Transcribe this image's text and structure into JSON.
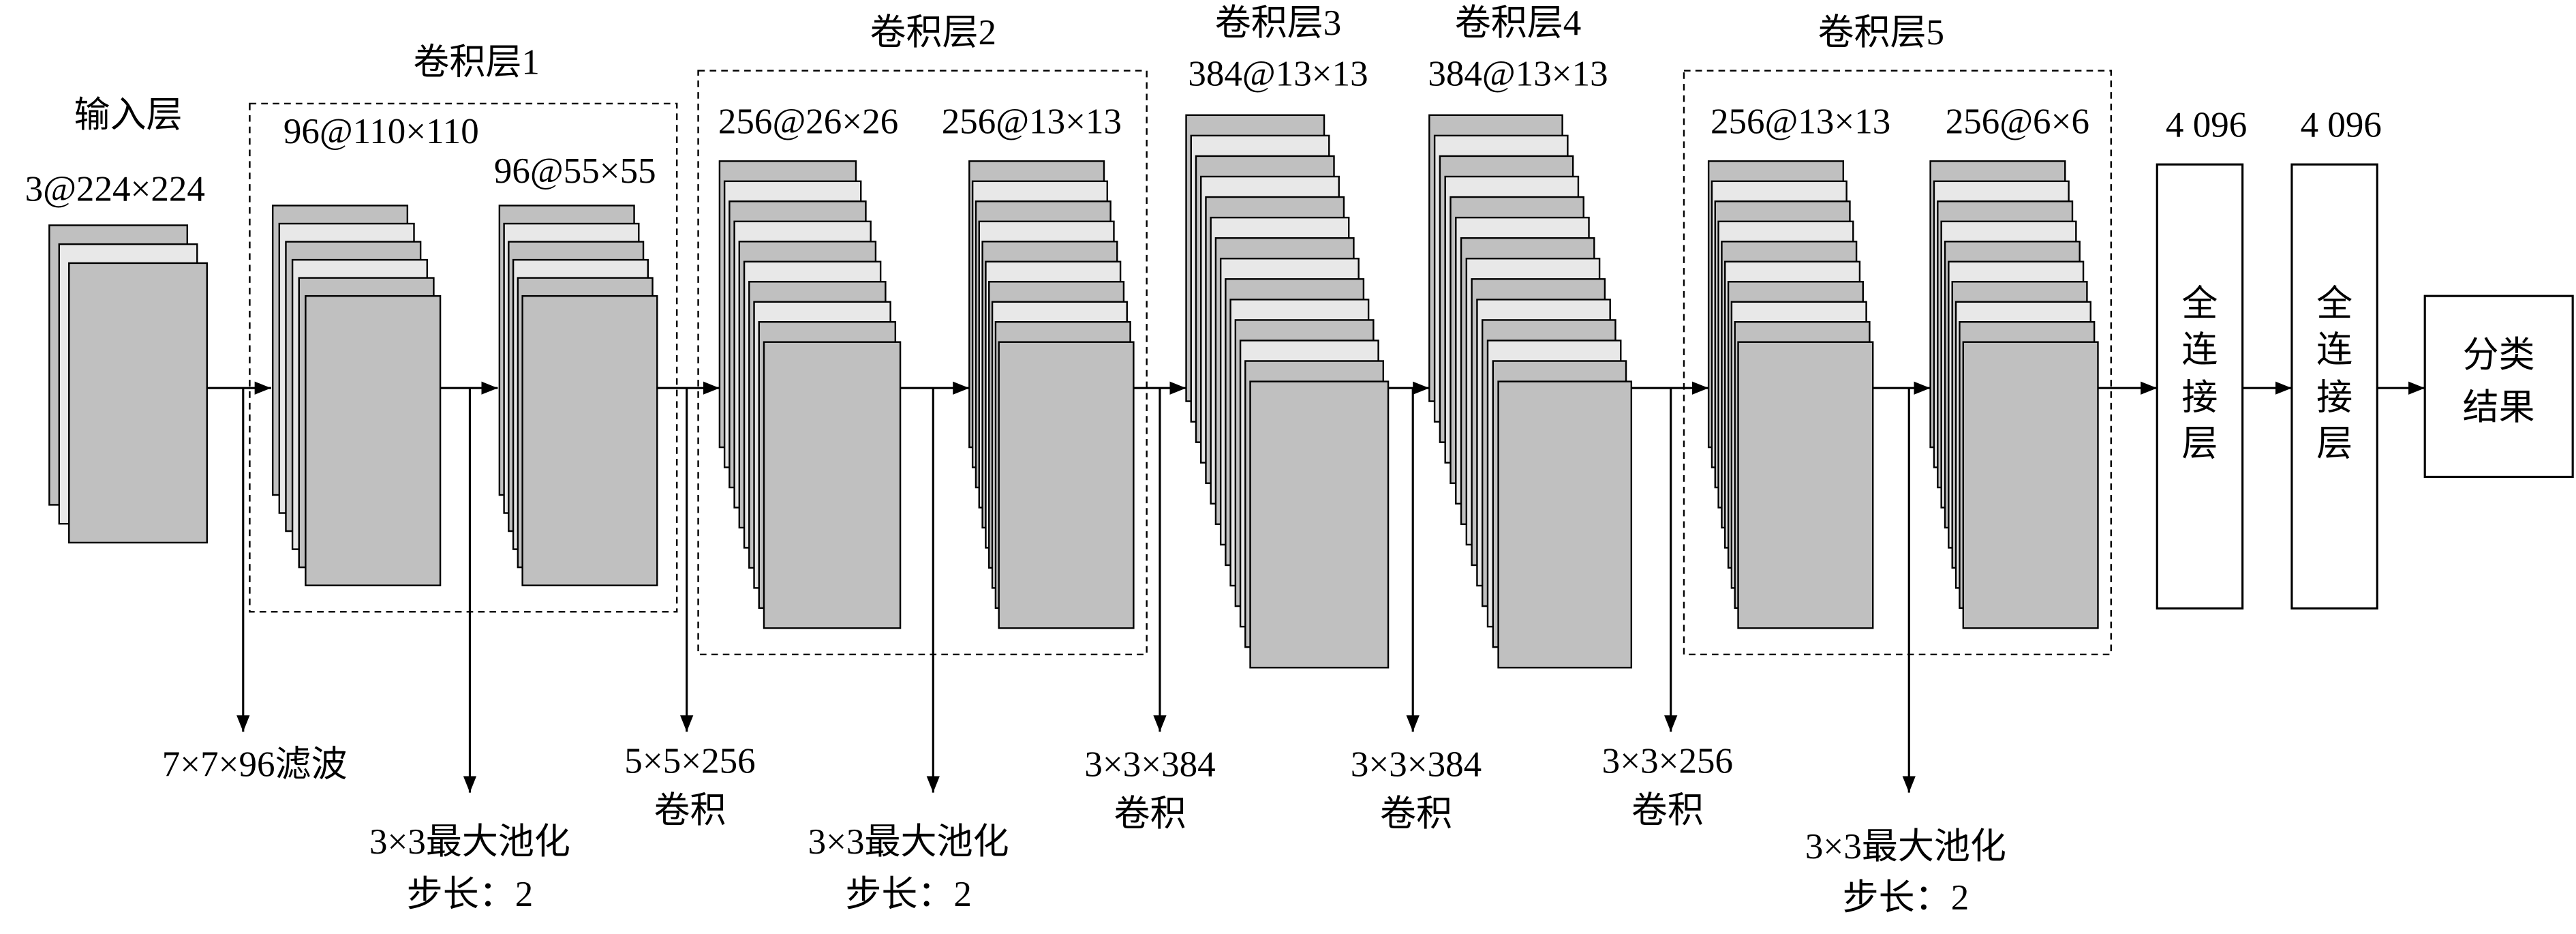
{
  "input": {
    "title": "输入层",
    "size": "3@224×224"
  },
  "groups": [
    {
      "title": "卷积层1"
    },
    {
      "title": "卷积层2"
    },
    {
      "title": "卷积层3"
    },
    {
      "title": "卷积层4"
    },
    {
      "title": "卷积层5"
    }
  ],
  "stacks": [
    {
      "size": "96@110×110"
    },
    {
      "size": "96@55×55"
    },
    {
      "size": "256@26×26"
    },
    {
      "size": "256@13×13"
    },
    {
      "size": "384@13×13"
    },
    {
      "size": "384@13×13"
    },
    {
      "size": "256@13×13"
    },
    {
      "size": "256@6×6"
    }
  ],
  "fully_connected": [
    {
      "size": "4 096",
      "label": [
        "全",
        "连",
        "接",
        "层"
      ]
    },
    {
      "size": "4 096",
      "label": [
        "全",
        "连",
        "接",
        "层"
      ]
    }
  ],
  "output": {
    "label": [
      "分类",
      "结果"
    ]
  },
  "operations": [
    {
      "lines": [
        "7×7×96滤波"
      ]
    },
    {
      "lines": [
        "3×3最大池化",
        "步长：2"
      ]
    },
    {
      "lines": [
        "5×5×256",
        "卷积"
      ]
    },
    {
      "lines": [
        "3×3最大池化",
        "步长：2"
      ]
    },
    {
      "lines": [
        "3×3×384",
        "卷积"
      ]
    },
    {
      "lines": [
        "3×3×384",
        "卷积"
      ]
    },
    {
      "lines": [
        "3×3×256",
        "卷积"
      ]
    },
    {
      "lines": [
        "3×3最大池化",
        "步长：2"
      ]
    }
  ]
}
